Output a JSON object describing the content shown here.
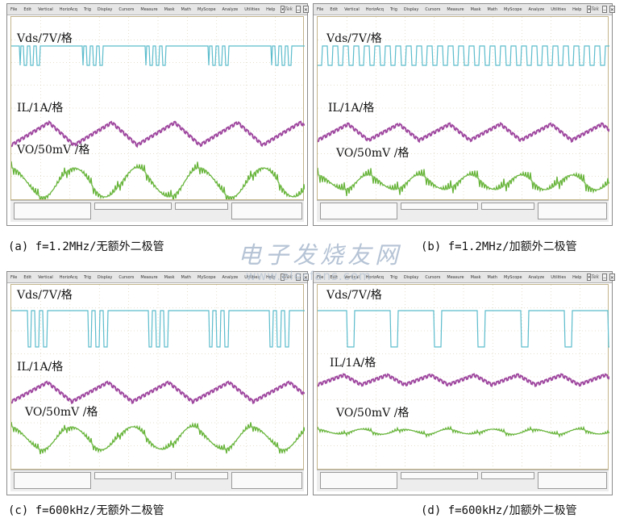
{
  "oscilloscope": {
    "brand": "Tek",
    "menu": [
      "File",
      "Edit",
      "Vertical",
      "HorizAcq",
      "Trig",
      "Display",
      "Cursors",
      "Measure",
      "Mask",
      "Math",
      "MyScope",
      "Analyze",
      "Utilities",
      "Help"
    ]
  },
  "panels": [
    {
      "id": "a",
      "caption": "(a) f=1.2MHz/无额外二极管",
      "labels": {
        "vds": "Vds/7V/格",
        "il": "IL/1A/格",
        "vo": "VO/50mV /格"
      }
    },
    {
      "id": "b",
      "caption": "(b) f=1.2MHz/加额外二极管",
      "labels": {
        "vds": "Vds/7V/格",
        "il": "IL/1A/格",
        "vo": "VO/50mV /格"
      }
    },
    {
      "id": "c",
      "caption": "(c) f=600kHz/无额外二极管",
      "labels": {
        "vds": "Vds/7V/格",
        "il": "IL/1A/格",
        "vo": "VO/50mV /格"
      }
    },
    {
      "id": "d",
      "caption": "(d) f=600kHz/加额外二极管",
      "labels": {
        "vds": "Vds/7V/格",
        "il": "IL/1A/格",
        "vo": "VO/50mV /格"
      }
    }
  ],
  "watermark": {
    "title": "电子发烧友网",
    "url": "www.elecfans.com"
  },
  "colors": {
    "vds": "#5bbccc",
    "il": "#a04aa0",
    "vo": "#67b43a",
    "grid": "#c2b38a"
  }
}
